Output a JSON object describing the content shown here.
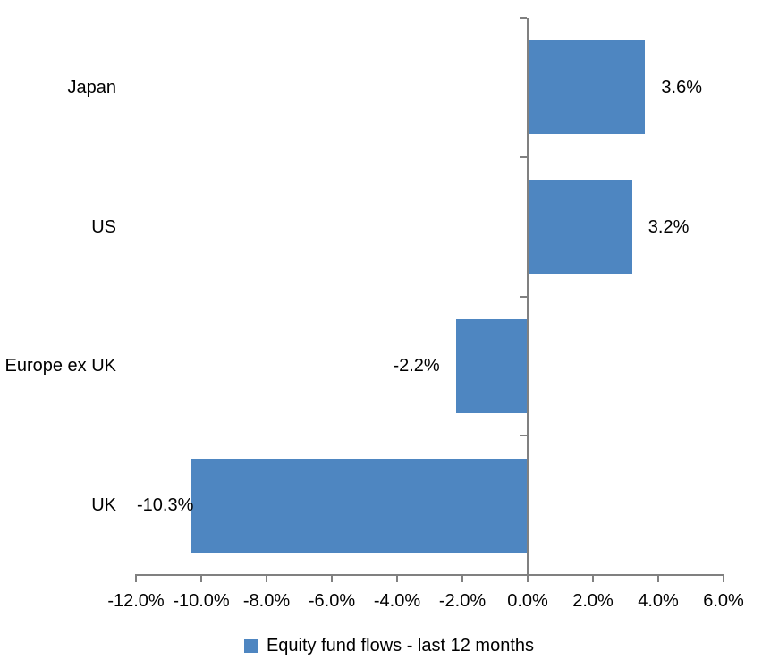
{
  "chart_data": {
    "type": "bar",
    "orientation": "horizontal",
    "title": "",
    "categories": [
      "Japan",
      "US",
      "Europe ex UK",
      "UK"
    ],
    "series": [
      {
        "name": "Equity fund flows - last 12 months",
        "values": [
          3.6,
          3.2,
          -2.2,
          -10.3
        ],
        "data_labels": [
          "3.6%",
          "3.2%",
          "-2.2%",
          "-10.3%"
        ]
      }
    ],
    "legend": {
      "label": "Equity fund flows - last 12 months",
      "position": "bottom",
      "marker": "square"
    },
    "x_axis": {
      "min": -12,
      "max": 6,
      "tick_step": 2,
      "tick_labels": [
        "-12.0%",
        "-10.0%",
        "-8.0%",
        "-6.0%",
        "-4.0%",
        "-2.0%",
        "0.0%",
        "2.0%",
        "4.0%",
        "6.0%"
      ]
    },
    "grid": false,
    "colors": {
      "bar": "#4e86c1",
      "axis": "#808080",
      "text": "#000000",
      "background": "#ffffff"
    }
  }
}
